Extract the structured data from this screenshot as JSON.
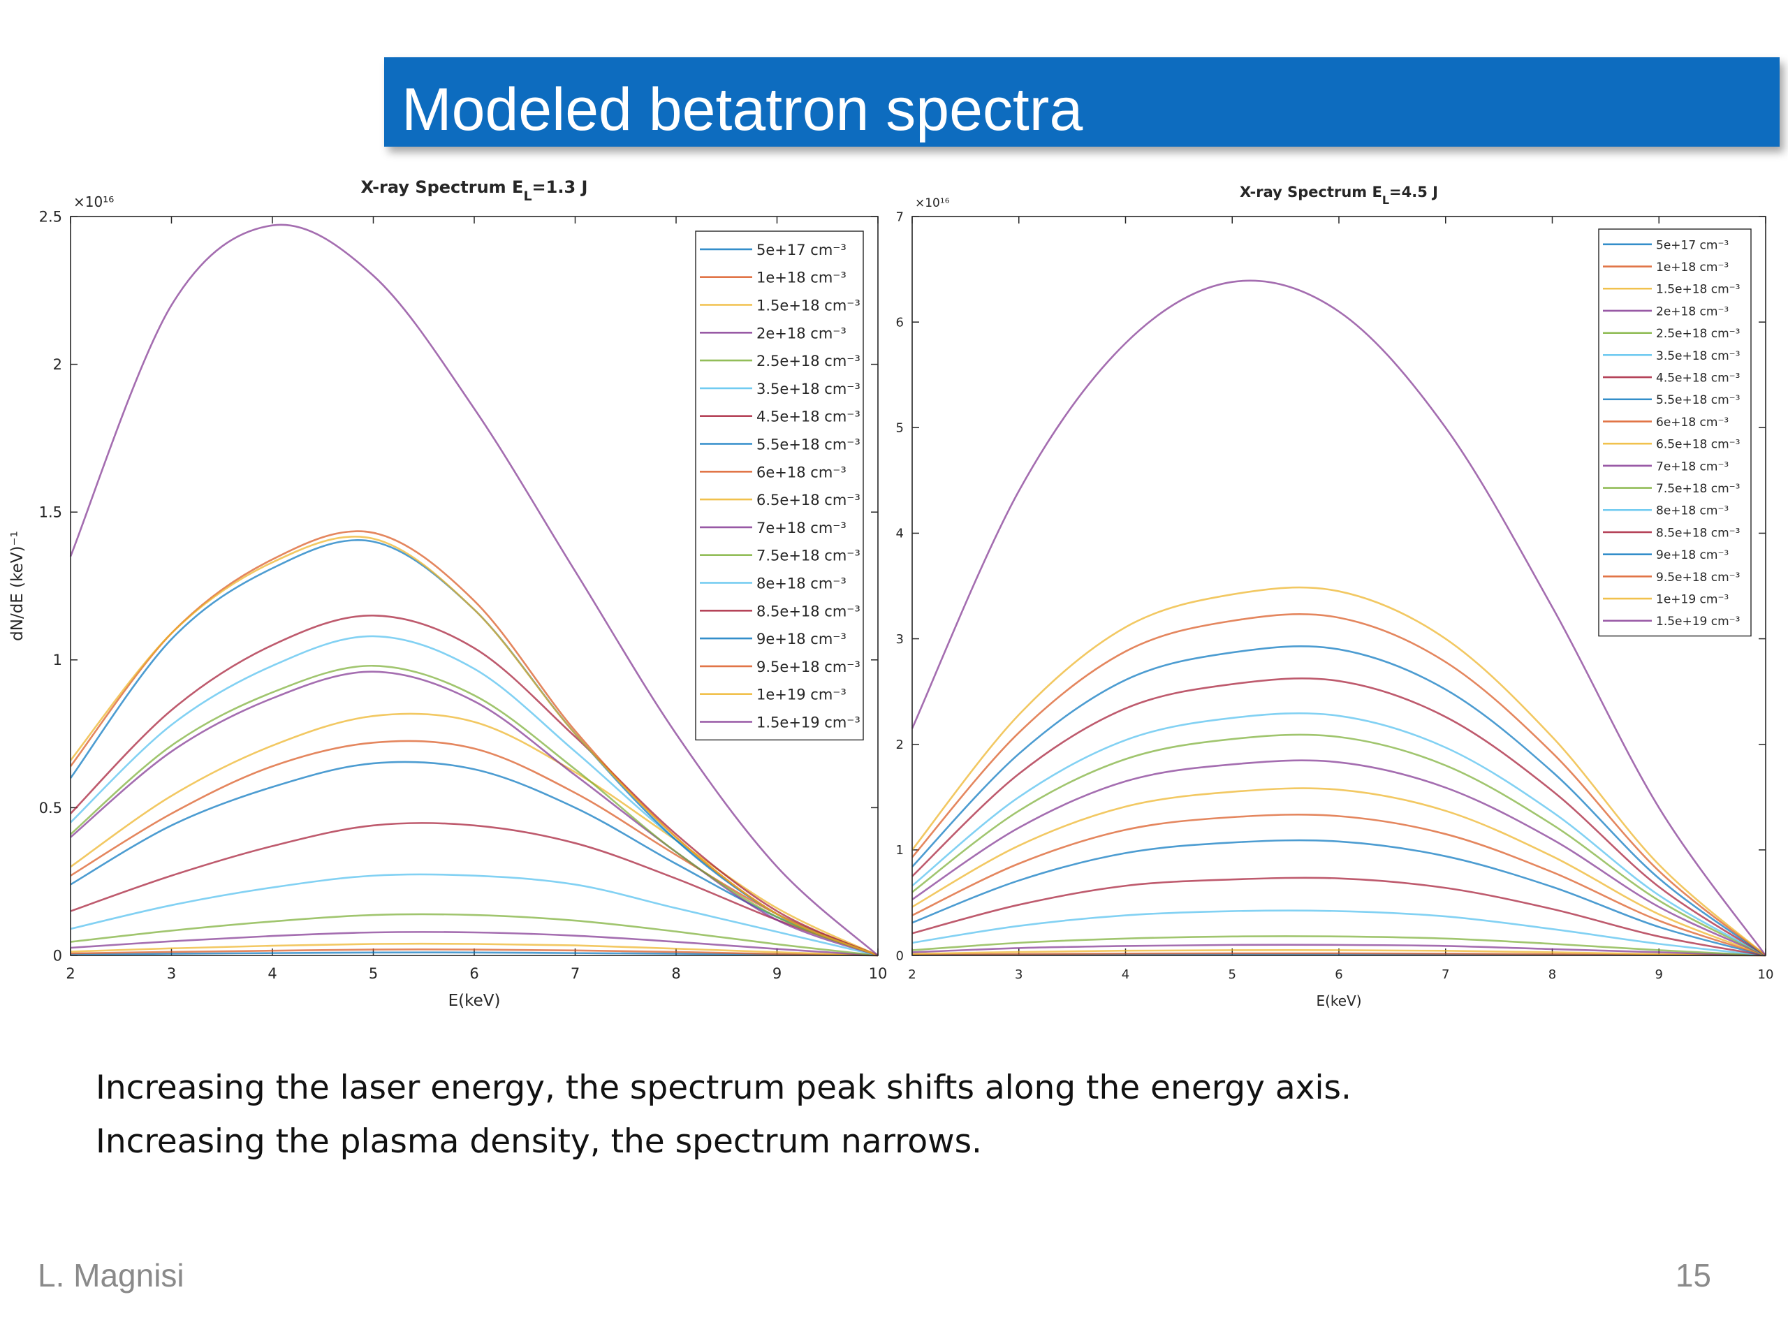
{
  "header": {
    "title": "Modeled betatron spectra"
  },
  "chart_data": [
    {
      "type": "line",
      "title": [
        "X-ray Spectrum E",
        "L",
        "=1.3 J"
      ],
      "x_label": "E(keV)",
      "y_label": "dN/dE (keV)⁻¹",
      "y_multiplier": "×10¹⁶",
      "x": [
        2,
        3,
        4,
        5,
        6,
        7,
        8,
        9,
        10
      ],
      "xlim": [
        2,
        10
      ],
      "xticks": [
        2,
        3,
        4,
        5,
        6,
        7,
        8,
        9,
        10
      ],
      "ylim": [
        0,
        2.5
      ],
      "yticks": [
        0,
        0.5,
        1,
        1.5,
        2,
        2.5
      ],
      "legend": "upper right",
      "grid": false,
      "series": [
        {
          "name": "5e+17 cm⁻³",
          "color": "#0072bd",
          "values": [
            0.003,
            0.006,
            0.008,
            0.01,
            0.01,
            0.008,
            0.006,
            0.003,
            0
          ]
        },
        {
          "name": "1e+18 cm⁻³",
          "color": "#d95319",
          "values": [
            0.007,
            0.012,
            0.016,
            0.02,
            0.02,
            0.017,
            0.012,
            0.005,
            0
          ]
        },
        {
          "name": "1.5e+18 cm⁻³",
          "color": "#edb120",
          "values": [
            0.013,
            0.024,
            0.033,
            0.039,
            0.039,
            0.034,
            0.023,
            0.011,
            0
          ]
        },
        {
          "name": "2e+18 cm⁻³",
          "color": "#7e2f8e",
          "values": [
            0.026,
            0.048,
            0.066,
            0.078,
            0.078,
            0.067,
            0.046,
            0.022,
            0
          ]
        },
        {
          "name": "2.5e+18 cm⁻³",
          "color": "#77ac30",
          "values": [
            0.046,
            0.084,
            0.115,
            0.137,
            0.137,
            0.118,
            0.081,
            0.038,
            0
          ]
        },
        {
          "name": "3.5e+18 cm⁻³",
          "color": "#4dbeee",
          "values": [
            0.09,
            0.17,
            0.23,
            0.27,
            0.27,
            0.24,
            0.16,
            0.08,
            0
          ]
        },
        {
          "name": "4.5e+18 cm⁻³",
          "color": "#a2142f",
          "values": [
            0.15,
            0.27,
            0.37,
            0.44,
            0.44,
            0.38,
            0.26,
            0.12,
            0
          ]
        },
        {
          "name": "5.5e+18 cm⁻³",
          "color": "#0072bd",
          "values": [
            0.24,
            0.44,
            0.57,
            0.65,
            0.63,
            0.5,
            0.31,
            0.13,
            0
          ]
        },
        {
          "name": "6e+18 cm⁻³",
          "color": "#d95319",
          "values": [
            0.27,
            0.48,
            0.64,
            0.72,
            0.7,
            0.55,
            0.34,
            0.14,
            0
          ]
        },
        {
          "name": "6.5e+18 cm⁻³",
          "color": "#edb120",
          "values": [
            0.3,
            0.54,
            0.71,
            0.81,
            0.79,
            0.62,
            0.39,
            0.16,
            0
          ]
        },
        {
          "name": "7e+18 cm⁻³",
          "color": "#7e2f8e",
          "values": [
            0.4,
            0.69,
            0.87,
            0.96,
            0.86,
            0.61,
            0.35,
            0.12,
            0
          ]
        },
        {
          "name": "7.5e+18 cm⁻³",
          "color": "#77ac30",
          "values": [
            0.41,
            0.71,
            0.89,
            0.98,
            0.88,
            0.63,
            0.35,
            0.13,
            0
          ]
        },
        {
          "name": "8e+18 cm⁻³",
          "color": "#4dbeee",
          "values": [
            0.45,
            0.78,
            0.98,
            1.08,
            0.97,
            0.69,
            0.39,
            0.14,
            0
          ]
        },
        {
          "name": "8.5e+18 cm⁻³",
          "color": "#a2142f",
          "values": [
            0.48,
            0.83,
            1.05,
            1.15,
            1.04,
            0.74,
            0.41,
            0.15,
            0
          ]
        },
        {
          "name": "9e+18 cm⁻³",
          "color": "#0072bd",
          "values": [
            0.6,
            1.07,
            1.31,
            1.4,
            1.17,
            0.75,
            0.39,
            0.14,
            0
          ]
        },
        {
          "name": "9.5e+18 cm⁻³",
          "color": "#d95319",
          "values": [
            0.64,
            1.09,
            1.34,
            1.43,
            1.2,
            0.76,
            0.4,
            0.14,
            0
          ]
        },
        {
          "name": "1e+19 cm⁻³",
          "color": "#edb120",
          "values": [
            0.66,
            1.09,
            1.33,
            1.41,
            1.17,
            0.75,
            0.4,
            0.14,
            0
          ]
        },
        {
          "name": "1.5e+19 cm⁻³",
          "color": "#7e2f8e",
          "values": [
            1.35,
            2.2,
            2.47,
            2.3,
            1.85,
            1.3,
            0.75,
            0.3,
            0
          ]
        }
      ]
    },
    {
      "type": "line",
      "title": [
        "X-ray Spectrum E",
        "L",
        "=4.5 J"
      ],
      "x_label": "E(keV)",
      "y_multiplier": "×10¹⁶",
      "x": [
        2,
        3,
        4,
        5,
        6,
        7,
        8,
        9,
        10
      ],
      "xlim": [
        2,
        10
      ],
      "xticks": [
        2,
        3,
        4,
        5,
        6,
        7,
        8,
        9,
        10
      ],
      "ylim": [
        0,
        7
      ],
      "yticks": [
        0,
        1,
        2,
        3,
        4,
        5,
        6,
        7
      ],
      "legend": "upper right",
      "grid": false,
      "series": [
        {
          "name": "5e+17 cm⁻³",
          "color": "#0072bd",
          "values": [
            0.003,
            0.007,
            0.009,
            0.01,
            0.01,
            0.009,
            0.006,
            0.003,
            0
          ]
        },
        {
          "name": "1e+18 cm⁻³",
          "color": "#d95319",
          "values": [
            0.006,
            0.013,
            0.018,
            0.02,
            0.02,
            0.017,
            0.012,
            0.005,
            0
          ]
        },
        {
          "name": "1.5e+18 cm⁻³",
          "color": "#edb120",
          "values": [
            0.015,
            0.033,
            0.045,
            0.05,
            0.05,
            0.044,
            0.03,
            0.013,
            0
          ]
        },
        {
          "name": "2e+18 cm⁻³",
          "color": "#7e2f8e",
          "values": [
            0.03,
            0.07,
            0.09,
            0.1,
            0.1,
            0.09,
            0.06,
            0.03,
            0
          ]
        },
        {
          "name": "2.5e+18 cm⁻³",
          "color": "#77ac30",
          "values": [
            0.05,
            0.12,
            0.16,
            0.18,
            0.18,
            0.16,
            0.11,
            0.05,
            0
          ]
        },
        {
          "name": "3.5e+18 cm⁻³",
          "color": "#4dbeee",
          "values": [
            0.12,
            0.28,
            0.38,
            0.42,
            0.42,
            0.37,
            0.25,
            0.11,
            0
          ]
        },
        {
          "name": "4.5e+18 cm⁻³",
          "color": "#a2142f",
          "values": [
            0.21,
            0.48,
            0.66,
            0.72,
            0.73,
            0.64,
            0.44,
            0.18,
            0
          ]
        },
        {
          "name": "5.5e+18 cm⁻³",
          "color": "#0072bd",
          "values": [
            0.31,
            0.71,
            0.97,
            1.07,
            1.08,
            0.94,
            0.65,
            0.27,
            0
          ]
        },
        {
          "name": "6e+18 cm⁻³",
          "color": "#d95319",
          "values": [
            0.38,
            0.87,
            1.19,
            1.31,
            1.32,
            1.15,
            0.79,
            0.33,
            0
          ]
        },
        {
          "name": "6.5e+18 cm⁻³",
          "color": "#edb120",
          "values": [
            0.46,
            1.04,
            1.41,
            1.55,
            1.57,
            1.37,
            0.94,
            0.39,
            0
          ]
        },
        {
          "name": "7e+18 cm⁻³",
          "color": "#7e2f8e",
          "values": [
            0.53,
            1.21,
            1.65,
            1.81,
            1.83,
            1.59,
            1.1,
            0.46,
            0
          ]
        },
        {
          "name": "7.5e+18 cm⁻³",
          "color": "#77ac30",
          "values": [
            0.6,
            1.37,
            1.86,
            2.05,
            2.07,
            1.8,
            1.24,
            0.52,
            0
          ]
        },
        {
          "name": "8e+18 cm⁻³",
          "color": "#4dbeee",
          "values": [
            0.66,
            1.5,
            2.04,
            2.25,
            2.27,
            1.97,
            1.36,
            0.57,
            0
          ]
        },
        {
          "name": "8.5e+18 cm⁻³",
          "color": "#a2142f",
          "values": [
            0.75,
            1.72,
            2.34,
            2.57,
            2.6,
            2.26,
            1.56,
            0.65,
            0
          ]
        },
        {
          "name": "9e+18 cm⁻³",
          "color": "#0072bd",
          "values": [
            0.84,
            1.91,
            2.61,
            2.87,
            2.9,
            2.52,
            1.74,
            0.73,
            0
          ]
        },
        {
          "name": "9.5e+18 cm⁻³",
          "color": "#d95319",
          "values": [
            0.93,
            2.11,
            2.88,
            3.17,
            3.2,
            2.78,
            1.92,
            0.8,
            0
          ]
        },
        {
          "name": "1e+19 cm⁻³",
          "color": "#edb120",
          "values": [
            1.0,
            2.28,
            3.11,
            3.42,
            3.45,
            3.0,
            2.07,
            0.86,
            0
          ]
        },
        {
          "name": "1.5e+19 cm⁻³",
          "color": "#7e2f8e",
          "values": [
            2.15,
            4.4,
            5.8,
            6.38,
            6.1,
            5.0,
            3.3,
            1.4,
            0
          ]
        }
      ]
    }
  ],
  "body": {
    "lines": [
      "Increasing the laser energy, the spectrum peak shifts along the energy axis.",
      "Increasing the plasma density, the spectrum narrows."
    ]
  },
  "footer": {
    "author": "L. Magnisi",
    "page": "15"
  }
}
